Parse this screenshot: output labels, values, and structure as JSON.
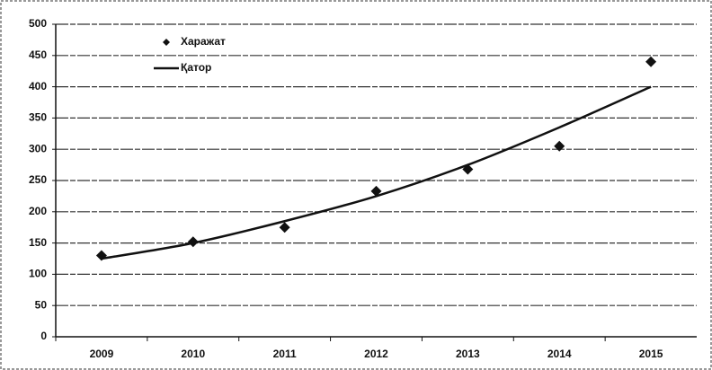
{
  "chart_data": {
    "type": "line",
    "categories": [
      "2009",
      "2010",
      "2011",
      "2012",
      "2013",
      "2014",
      "2015"
    ],
    "series": [
      {
        "name": "Харажат",
        "type": "scatter",
        "color": "#111111",
        "values": [
          130,
          152,
          175,
          233,
          268,
          305,
          440
        ]
      },
      {
        "name": "Қатор",
        "type": "line",
        "color": "#111111",
        "values": [
          125,
          150,
          185,
          225,
          275,
          335,
          400
        ]
      }
    ],
    "ylim": [
      0,
      500
    ],
    "yticks": [
      0,
      50,
      100,
      150,
      200,
      250,
      300,
      350,
      400,
      450,
      500
    ],
    "grid": true,
    "legend": "top-left"
  }
}
